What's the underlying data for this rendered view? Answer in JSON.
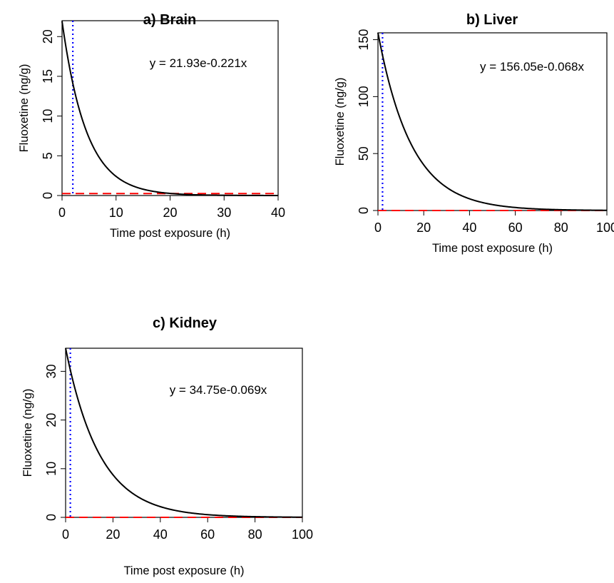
{
  "chart_data": [
    {
      "type": "line",
      "title": "a) Brain",
      "xlabel": "Time post exposure (h)",
      "ylabel": "Fluoxetine (ng/g)",
      "xlim": [
        0,
        40
      ],
      "ylim": [
        0,
        22
      ],
      "xticks": [
        0,
        10,
        20,
        30,
        40
      ],
      "yticks": [
        0,
        5,
        10,
        15,
        20
      ],
      "annotation": "y = 21.93e-0.221x",
      "curve": {
        "a": 21.93,
        "k": 0.221,
        "x_start": 0,
        "x_end": 40
      },
      "vline": {
        "x": 2,
        "color": "#0000ff",
        "style": "dotted"
      },
      "hline": {
        "y": 0.25,
        "color": "#ff0000",
        "style": "dashed"
      },
      "grid": false
    },
    {
      "type": "line",
      "title": "b) Liver",
      "xlabel": "Time post exposure (h)",
      "ylabel": "Fluoxetine (ng/g)",
      "xlim": [
        0,
        100
      ],
      "ylim": [
        0,
        156
      ],
      "xticks": [
        0,
        20,
        40,
        60,
        80,
        100
      ],
      "yticks": [
        0,
        50,
        100,
        150
      ],
      "annotation": "y = 156.05e-0.068x",
      "curve": {
        "a": 156.05,
        "k": 0.068,
        "x_start": 0,
        "x_end": 100
      },
      "vline": {
        "x": 2,
        "color": "#0000ff",
        "style": "dotted"
      },
      "hline": {
        "y": 0,
        "color": "#ff0000",
        "style": "dashed"
      },
      "grid": false
    },
    {
      "type": "line",
      "title": "c) Kidney",
      "xlabel": "Time post exposure (h)",
      "ylabel": "Fluoxetine (ng/g)",
      "xlim": [
        0,
        100
      ],
      "ylim": [
        0,
        34.75
      ],
      "xticks": [
        0,
        20,
        40,
        60,
        80,
        100
      ],
      "yticks": [
        0,
        10,
        20,
        30
      ],
      "annotation": "y = 34.75e-0.069x",
      "curve": {
        "a": 34.75,
        "k": 0.069,
        "x_start": 0,
        "x_end": 100
      },
      "vline": {
        "x": 2,
        "color": "#0000ff",
        "style": "dotted"
      },
      "hline": {
        "y": 0,
        "color": "#ff0000",
        "style": "dashed"
      },
      "grid": false
    }
  ]
}
